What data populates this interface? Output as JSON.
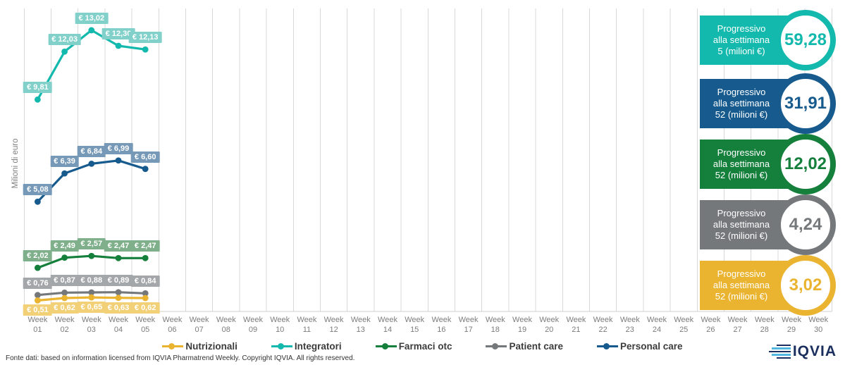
{
  "chart_data": {
    "type": "line",
    "title": "",
    "xlabel": "",
    "ylabel": "Milioni di euro",
    "week_prefix": "Week",
    "weeks": [
      "01",
      "02",
      "03",
      "04",
      "05",
      "06",
      "07",
      "08",
      "09",
      "10",
      "11",
      "12",
      "13",
      "14",
      "15",
      "16",
      "17",
      "18",
      "19",
      "20",
      "21",
      "22",
      "23",
      "24",
      "25",
      "26",
      "27",
      "28",
      "29",
      "30"
    ],
    "data_weeks": 5,
    "ylim": [
      0,
      14
    ],
    "grid": "vertical-only",
    "legend_position": "bottom",
    "series": [
      {
        "name": "Integratori",
        "color": "#14b9ae",
        "label_bg": "#82d0ca",
        "label_position": "above",
        "values": [
          9.81,
          12.03,
          13.02,
          12.3,
          12.13
        ],
        "value_labels": [
          "€ 9,81",
          "€ 12,03",
          "€ 13,02",
          "€ 12,30",
          "€ 12,13"
        ]
      },
      {
        "name": "Personal care",
        "color": "#175b8e",
        "label_bg": "#7699b7",
        "label_position": "above",
        "values": [
          5.08,
          6.39,
          6.84,
          6.99,
          6.6
        ],
        "value_labels": [
          "€ 5,08",
          "€ 6,39",
          "€ 6,84",
          "€ 6,99",
          "€ 6,60"
        ]
      },
      {
        "name": "Farmaci otc",
        "color": "#157f3c",
        "label_bg": "#7fb08b",
        "label_position": "above",
        "values": [
          2.02,
          2.49,
          2.57,
          2.47,
          2.47
        ],
        "value_labels": [
          "€ 2,02",
          "€ 2,49",
          "€ 2,57",
          "€ 2,47",
          "€ 2,47"
        ]
      },
      {
        "name": "Patient care",
        "color": "#75787b",
        "label_bg": "#a4a7a9",
        "label_position": "above",
        "values": [
          0.76,
          0.87,
          0.88,
          0.89,
          0.84
        ],
        "value_labels": [
          "€ 0,76",
          "€ 0,87",
          "€ 0,88",
          "€ 0,89",
          "€ 0,84"
        ]
      },
      {
        "name": "Nutrizionali",
        "color": "#eab431",
        "label_bg": "#f2d077",
        "label_position": "below",
        "values": [
          0.51,
          0.62,
          0.65,
          0.63,
          0.62
        ],
        "value_labels": [
          "€ 0,51",
          "€ 0,62",
          "€ 0,65",
          "€ 0,63",
          "€ 0,62"
        ]
      }
    ]
  },
  "cards": [
    {
      "line1": "Progressivo",
      "line2": "alla settimana",
      "line3": "5 (milioni €)",
      "value": "59,28",
      "color": "#14b9ae"
    },
    {
      "line1": "Progressivo",
      "line2": "alla settimana",
      "line3": "52 (milioni €)",
      "value": "31,91",
      "color": "#175b8e"
    },
    {
      "line1": "Progressivo",
      "line2": "alla settimana",
      "line3": "52 (milioni €)",
      "value": "12,02",
      "color": "#157f3c"
    },
    {
      "line1": "Progressivo",
      "line2": "alla settimana",
      "line3": "52 (milioni €)",
      "value": "4,24",
      "color": "#75787b"
    },
    {
      "line1": "Progressivo",
      "line2": "alla settimana",
      "line3": "52 (milioni €)",
      "value": "3,02",
      "color": "#eab431"
    }
  ],
  "legend": {
    "items": [
      {
        "label": "Nutrizionali",
        "color": "#eab431"
      },
      {
        "label": "Integratori",
        "color": "#14b9ae"
      },
      {
        "label": "Farmaci otc",
        "color": "#157f3c"
      },
      {
        "label": "Patient care",
        "color": "#75787b"
      },
      {
        "label": "Personal care",
        "color": "#175b8e"
      }
    ]
  },
  "footer": {
    "source_text": "Fonte dati: based on information licensed from IQVIA Pharmatrend Weekly. Copyright IQVIA. All rights reserved."
  },
  "logo": {
    "text": "IQVIA",
    "navy": "#1b2f5e",
    "light_blue": "#52b7e0"
  }
}
